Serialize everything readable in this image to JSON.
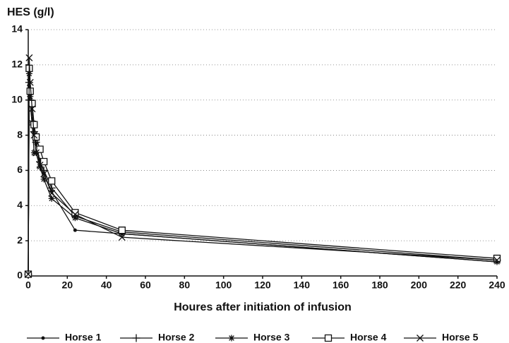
{
  "chart_data": {
    "type": "line",
    "y_label": "HES (g/l)",
    "x_label": "Houres after initiation of infusion",
    "x": [
      0,
      0.5,
      1,
      2,
      3,
      4,
      6,
      8,
      12,
      24,
      48,
      240
    ],
    "series": [
      {
        "name": "Horse 1",
        "color": "#111111",
        "marker": "dot",
        "values": [
          0.1,
          10.8,
          9.8,
          8.6,
          8.0,
          7.5,
          6.3,
          5.8,
          4.8,
          2.6,
          2.4,
          0.8
        ]
      },
      {
        "name": "Horse 2",
        "color": "#111111",
        "marker": "plus",
        "values": [
          0.1,
          11.0,
          10.0,
          8.8,
          8.2,
          7.6,
          6.5,
          6.0,
          5.0,
          3.4,
          2.5,
          0.9
        ]
      },
      {
        "name": "Horse 3",
        "color": "#111111",
        "marker": "asterisk",
        "values": [
          0.1,
          11.5,
          10.2,
          8.7,
          7.0,
          7.0,
          6.2,
          5.5,
          4.4,
          3.3,
          2.4,
          0.8
        ]
      },
      {
        "name": "Horse 4",
        "color": "#111111",
        "marker": "square",
        "values": [
          0.1,
          11.8,
          10.5,
          9.8,
          8.6,
          7.9,
          7.2,
          6.5,
          5.4,
          3.6,
          2.6,
          1.0
        ]
      },
      {
        "name": "Horse 5",
        "color": "#111111",
        "marker": "x",
        "values": [
          0.1,
          12.4,
          11.0,
          9.5,
          8.0,
          7.0,
          6.3,
          5.8,
          4.7,
          3.5,
          2.2,
          0.9
        ]
      }
    ],
    "xlim": [
      0,
      240
    ],
    "xticks": [
      0,
      20,
      40,
      60,
      80,
      100,
      120,
      140,
      160,
      180,
      200,
      220,
      240
    ],
    "ylim": [
      0,
      14
    ],
    "yticks": [
      0,
      2,
      4,
      6,
      8,
      10,
      12,
      14
    ],
    "grid": true,
    "legend": "bottom"
  }
}
